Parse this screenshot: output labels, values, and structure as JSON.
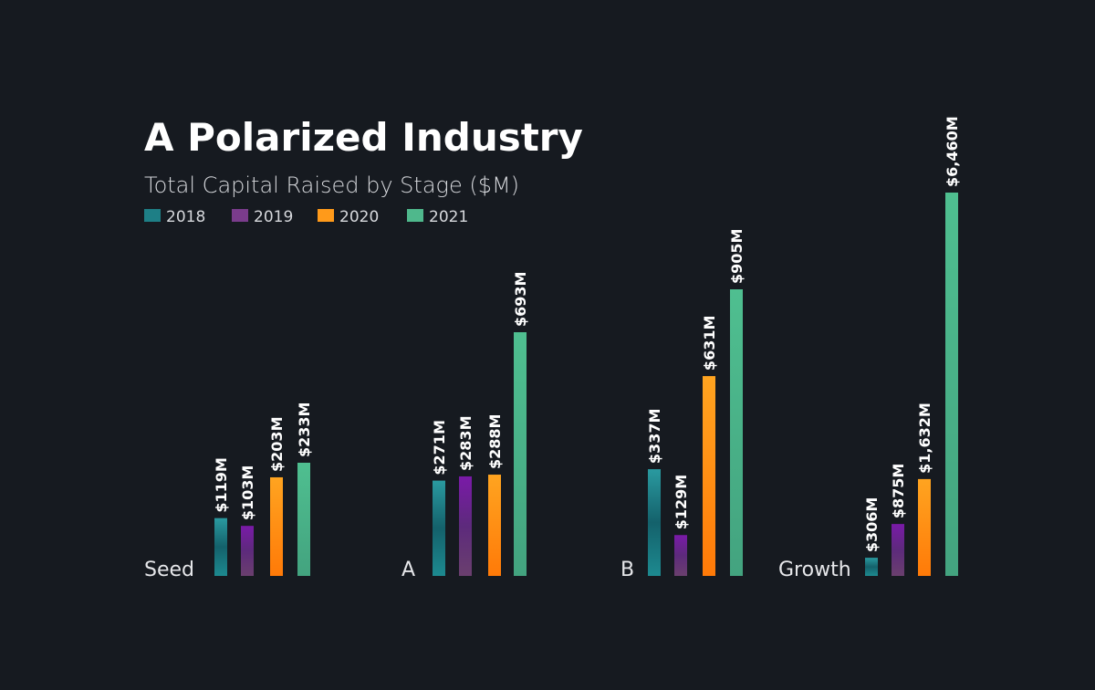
{
  "chart_data": {
    "type": "bar",
    "title": "A Polarized Industry",
    "subtitle": "Total Capital Raised by Stage ($M)",
    "categories": [
      "Seed",
      "A",
      "B",
      "Growth"
    ],
    "series": [
      {
        "name": "2018",
        "color": "#1e7f86",
        "values": [
          119,
          271,
          337,
          306
        ],
        "labels": [
          "$119M",
          "$271M",
          "$337M",
          "$306M"
        ]
      },
      {
        "name": "2019",
        "color": "#7a3c8c",
        "values": [
          103,
          283,
          129,
          875
        ],
        "labels": [
          "$103M",
          "$283M",
          "$129M",
          "$875M"
        ]
      },
      {
        "name": "2020",
        "color": "#ff9a1a",
        "values": [
          203,
          288,
          631,
          1632
        ],
        "labels": [
          "$203M",
          "$288M",
          "$631M",
          "$1,632M"
        ]
      },
      {
        "name": "2021",
        "color": "#4fb88c",
        "values": [
          233,
          693,
          905,
          6460
        ],
        "labels": [
          "$233M",
          "$693M",
          "$905M",
          "$6,460M"
        ]
      }
    ],
    "legend_position": "top-left",
    "grid": false,
    "scale": "independent per category"
  }
}
